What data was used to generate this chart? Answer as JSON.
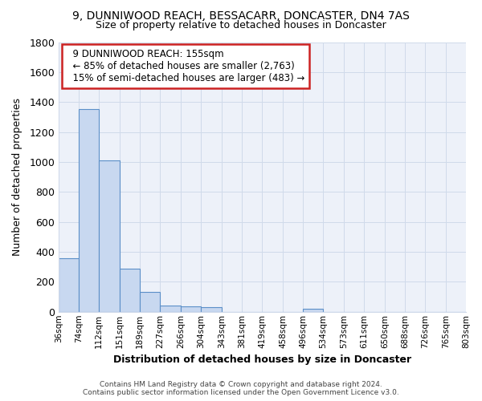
{
  "title": "9, DUNNIWOOD REACH, BESSACARR, DONCASTER, DN4 7AS",
  "subtitle": "Size of property relative to detached houses in Doncaster",
  "xlabel": "Distribution of detached houses by size in Doncaster",
  "ylabel": "Number of detached properties",
  "annotation_line1": "9 DUNNIWOOD REACH: 155sqm",
  "annotation_line2": "← 85% of detached houses are smaller (2,763)",
  "annotation_line3": "15% of semi-detached houses are larger (483) →",
  "bar_edges": [
    36,
    74,
    112,
    151,
    189,
    227,
    266,
    304,
    343,
    381,
    419,
    458,
    496,
    534,
    573,
    611,
    650,
    688,
    726,
    765,
    803
  ],
  "bar_heights": [
    355,
    1355,
    1010,
    290,
    130,
    40,
    38,
    30,
    0,
    0,
    0,
    0,
    20,
    0,
    0,
    0,
    0,
    0,
    0,
    0
  ],
  "bar_color": "#c8d8f0",
  "bar_edge_color": "#5b8fc8",
  "ylim": [
    0,
    1800
  ],
  "yticks": [
    0,
    200,
    400,
    600,
    800,
    1000,
    1200,
    1400,
    1600,
    1800
  ],
  "grid_color": "#d0daea",
  "bg_color": "#edf1f9",
  "annotation_box_facecolor": "#ffffff",
  "annotation_box_edgecolor": "#cc2222",
  "footer_line1": "Contains HM Land Registry data © Crown copyright and database right 2024.",
  "footer_line2": "Contains public sector information licensed under the Open Government Licence v3.0."
}
